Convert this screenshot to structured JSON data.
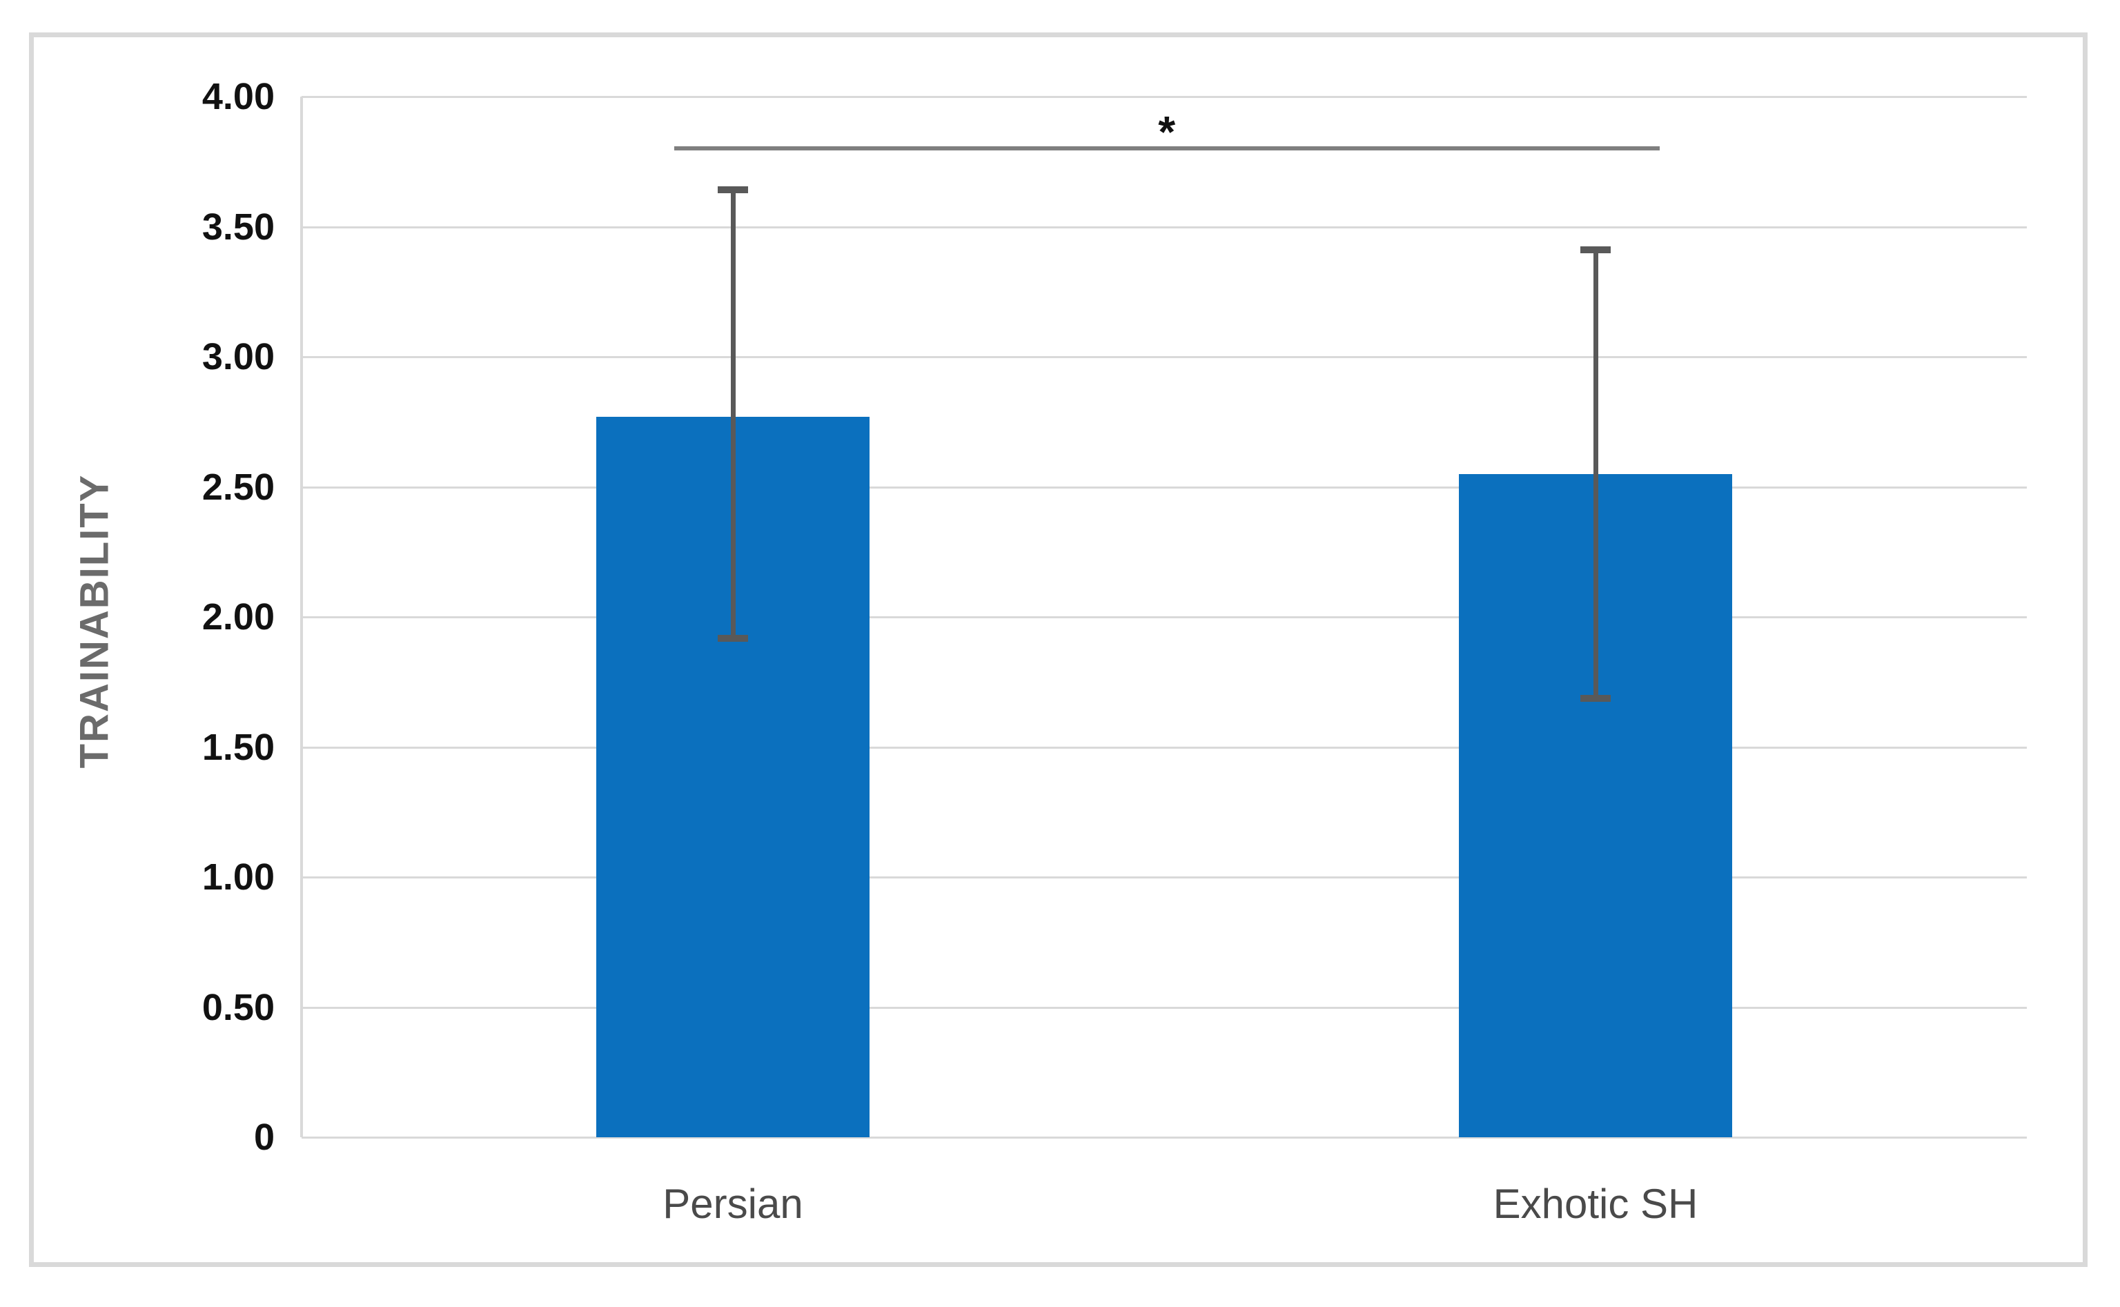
{
  "chart_data": {
    "type": "bar",
    "title": "",
    "xlabel": "",
    "ylabel": "TRAINABILITY",
    "categories": [
      "Persian",
      "Exhotic SH"
    ],
    "values": [
      2.77,
      2.55
    ],
    "error_bars": [
      {
        "upper": 3.65,
        "lower": 1.91
      },
      {
        "upper": 3.42,
        "lower": 1.68
      }
    ],
    "ylim": [
      0,
      4
    ],
    "yticks": [
      {
        "value": 4.0,
        "label": "4.00"
      },
      {
        "value": 3.5,
        "label": "3.50"
      },
      {
        "value": 3.0,
        "label": "3.00"
      },
      {
        "value": 2.5,
        "label": "2.50"
      },
      {
        "value": 2.0,
        "label": "2.00"
      },
      {
        "value": 1.5,
        "label": "1.50"
      },
      {
        "value": 1.0,
        "label": "1.00"
      },
      {
        "value": 0.5,
        "label": "0.50"
      },
      {
        "value": 0,
        "label": "0"
      }
    ],
    "grid": true,
    "legend": "none",
    "bar_color": "#0b70be",
    "error_bar_color": "#595959",
    "significance": {
      "marker": "*",
      "level_value": 3.8,
      "span_fraction": [
        0.216,
        0.787
      ]
    }
  }
}
